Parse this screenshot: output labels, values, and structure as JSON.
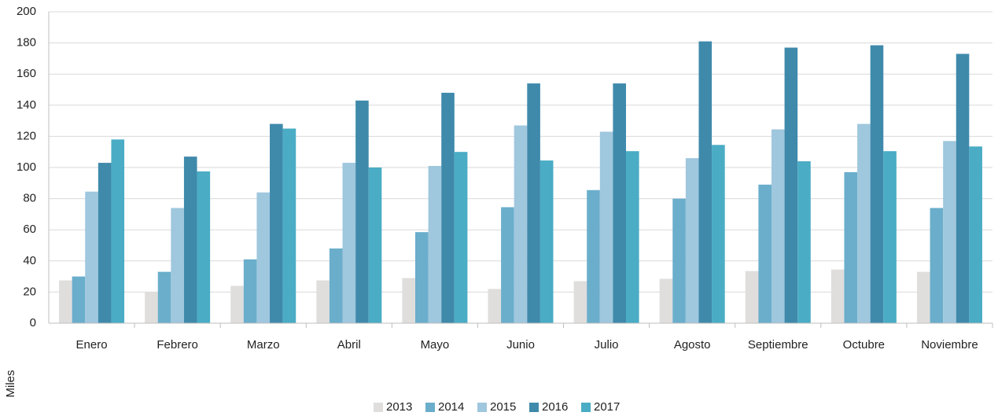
{
  "chart_data": {
    "type": "bar",
    "y_label": "Miles",
    "categories": [
      "Enero",
      "Febrero",
      "Marzo",
      "Abril",
      "Mayo",
      "Junio",
      "Julio",
      "Agosto",
      "Septiembre",
      "Octubre",
      "Noviembre"
    ],
    "series": [
      {
        "name": "2013",
        "color": "#dfdedc",
        "values": [
          27.5,
          20,
          24,
          27.5,
          29,
          22,
          27,
          28.5,
          33.5,
          34.5,
          33
        ]
      },
      {
        "name": "2014",
        "color": "#6aaecb",
        "values": [
          30,
          33,
          41,
          48,
          58.5,
          74.5,
          85.5,
          80,
          89,
          97,
          74
        ]
      },
      {
        "name": "2015",
        "color": "#9fc7de",
        "values": [
          84.5,
          74,
          84,
          103,
          101,
          127,
          123,
          106,
          124.5,
          128,
          117
        ]
      },
      {
        "name": "2016",
        "color": "#3f8aab",
        "values": [
          103,
          107,
          128,
          143,
          148,
          154,
          154,
          181,
          177,
          178.5,
          173
        ]
      },
      {
        "name": "2017",
        "color": "#4aacc5",
        "values": [
          118,
          97.5,
          125,
          100,
          110,
          104.5,
          110.5,
          114.5,
          104,
          110.5,
          113.5
        ]
      }
    ],
    "ylim": [
      0,
      200
    ],
    "yticks": [
      0,
      20,
      40,
      60,
      80,
      100,
      120,
      140,
      160,
      180,
      200
    ],
    "grid": true,
    "legend": "bottom"
  }
}
